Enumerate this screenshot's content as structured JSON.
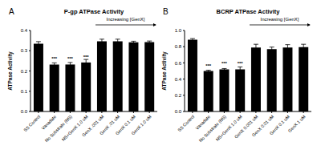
{
  "chart_data": [
    {
      "type": "bar",
      "panel": "A",
      "title": "P-gp ATPase Activity",
      "y_label": "ATPase Activity",
      "annotation": "Increasing [GenX]",
      "categories": [
        "SS Control",
        "Vanadate",
        "No Substrate (NS)",
        "NS+GenX 1.0 uM",
        "GenX .001 uM",
        "GenX .01 uM",
        "GenX 0.1 uM",
        "GenX 1.0 uM"
      ],
      "values": [
        0.335,
        0.232,
        0.232,
        0.242,
        0.347,
        0.347,
        0.342,
        0.343
      ],
      "errors": [
        0.01,
        0.008,
        0.01,
        0.015,
        0.01,
        0.01,
        0.005,
        0.005
      ],
      "significance": [
        null,
        "***",
        "***",
        "***",
        null,
        null,
        null,
        null
      ],
      "color": "#000000",
      "ylim": [
        0,
        0.4
      ],
      "yticks": [
        {
          "value": 0,
          "label": "0.0"
        },
        0.1,
        0.2,
        0.3,
        0.4
      ]
    },
    {
      "type": "bar",
      "panel": "B",
      "title": "BCRP ATPase Activity",
      "y_label": "ATPase Activity",
      "annotation": "Increasing [GenX]",
      "categories": [
        "SS Control",
        "Vanadate",
        "No Substrate (NS)",
        "NS+GenX 1.0 uM",
        "GenX 0.001 uM",
        "GenX 0.01 uM",
        "GenX 0.1 uM",
        "GenX 1 uM"
      ],
      "values": [
        0.885,
        0.5,
        0.52,
        0.52,
        0.79,
        0.77,
        0.79,
        0.795
      ],
      "errors": [
        0.015,
        0.01,
        0.01,
        0.03,
        0.04,
        0.025,
        0.035,
        0.035
      ],
      "significance": [
        null,
        "***",
        "***",
        "***",
        null,
        null,
        null,
        null
      ],
      "color": "#000000",
      "ylim": [
        0,
        1.0
      ],
      "yticks": [
        {
          "value": 0,
          "label": "0.0"
        },
        0.2,
        0.4,
        0.6,
        0.8,
        {
          "value": 1.0,
          "label": "1.0"
        }
      ]
    }
  ]
}
